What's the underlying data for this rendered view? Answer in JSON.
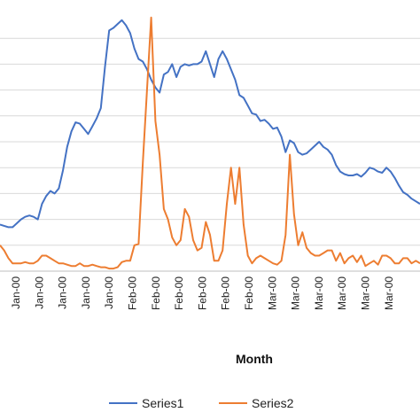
{
  "chart_data": {
    "type": "line",
    "xlabel": "Month",
    "ylabel": "",
    "ylim": [
      0,
      10
    ],
    "grid": "horizontal",
    "legend_position": "bottom",
    "x_tick_labels": [
      "Jan-00",
      "Jan-00",
      "Jan-00",
      "Jan-00",
      "Jan-00",
      "Feb-00",
      "Feb-00",
      "Feb-00",
      "Feb-00",
      "Feb-00",
      "Feb-00",
      "Mar-00",
      "Mar-00",
      "Mar-00",
      "Mar-00",
      "Mar-00",
      "Mar-00"
    ],
    "x": [
      0,
      1,
      2,
      3,
      4,
      5,
      6,
      7,
      8,
      9,
      10,
      11,
      12,
      13,
      14,
      15,
      16,
      17,
      18,
      19,
      20,
      21,
      22,
      23,
      24,
      25,
      26,
      27,
      28,
      29,
      30,
      31,
      32,
      33,
      34,
      35,
      36,
      37,
      38,
      39,
      40,
      41,
      42,
      43,
      44,
      45,
      46,
      47,
      48,
      49,
      50,
      51,
      52,
      53,
      54,
      55,
      56,
      57,
      58,
      59,
      60,
      61,
      62,
      63,
      64,
      65,
      66,
      67,
      68,
      69,
      70,
      71,
      72,
      73,
      74,
      75,
      76,
      77,
      78,
      79,
      80,
      81,
      82,
      83,
      84,
      85,
      86,
      87,
      88,
      89,
      90,
      91,
      92,
      93,
      94,
      95,
      96,
      97,
      98,
      99,
      100
    ],
    "series": [
      {
        "name": "Series1",
        "color": "#4472C4",
        "values": [
          1.8,
          1.75,
          1.7,
          1.7,
          1.85,
          2.0,
          2.1,
          2.15,
          2.1,
          2.0,
          2.6,
          2.9,
          3.1,
          3.0,
          3.2,
          3.9,
          4.8,
          5.4,
          5.75,
          5.7,
          5.5,
          5.3,
          5.6,
          5.9,
          6.3,
          7.9,
          9.3,
          9.4,
          9.55,
          9.7,
          9.5,
          9.2,
          8.6,
          8.2,
          8.1,
          7.8,
          7.4,
          7.1,
          6.9,
          7.6,
          7.7,
          8.0,
          7.5,
          7.9,
          8.0,
          7.95,
          8.0,
          8.0,
          8.1,
          8.5,
          8.0,
          7.5,
          8.2,
          8.5,
          8.2,
          7.8,
          7.4,
          6.8,
          6.7,
          6.4,
          6.1,
          6.05,
          5.8,
          5.85,
          5.7,
          5.5,
          5.55,
          5.2,
          4.6,
          5.05,
          4.95,
          4.6,
          4.5,
          4.55,
          4.7,
          4.85,
          5.0,
          4.8,
          4.7,
          4.5,
          4.1,
          3.85,
          3.75,
          3.7,
          3.7,
          3.75,
          3.65,
          3.8,
          4.0,
          3.95,
          3.85,
          3.8,
          4.0,
          3.85,
          3.6,
          3.3,
          3.05,
          2.95,
          2.8,
          2.7,
          2.6
        ]
      },
      {
        "name": "Series2",
        "color": "#ED7D31",
        "values": [
          1.0,
          0.8,
          0.5,
          0.3,
          0.3,
          0.3,
          0.35,
          0.3,
          0.3,
          0.4,
          0.6,
          0.6,
          0.5,
          0.4,
          0.3,
          0.3,
          0.25,
          0.2,
          0.2,
          0.3,
          0.2,
          0.2,
          0.25,
          0.2,
          0.15,
          0.15,
          0.1,
          0.1,
          0.15,
          0.35,
          0.4,
          0.4,
          1.0,
          1.05,
          4.2,
          7.0,
          9.8,
          5.8,
          4.5,
          2.4,
          2.0,
          1.3,
          1.0,
          1.2,
          2.4,
          2.1,
          1.2,
          0.8,
          0.9,
          1.9,
          1.4,
          0.4,
          0.4,
          0.8,
          2.6,
          4.0,
          2.6,
          4.0,
          1.8,
          0.6,
          0.3,
          0.5,
          0.6,
          0.5,
          0.4,
          0.3,
          0.25,
          0.4,
          1.4,
          4.5,
          2.2,
          1.0,
          1.5,
          0.9,
          0.7,
          0.6,
          0.6,
          0.7,
          0.8,
          0.8,
          0.4,
          0.7,
          0.3,
          0.5,
          0.6,
          0.35,
          0.6,
          0.2,
          0.3,
          0.4,
          0.25,
          0.6,
          0.6,
          0.5,
          0.3,
          0.3,
          0.5,
          0.5,
          0.3,
          0.4,
          0.3
        ]
      }
    ]
  }
}
